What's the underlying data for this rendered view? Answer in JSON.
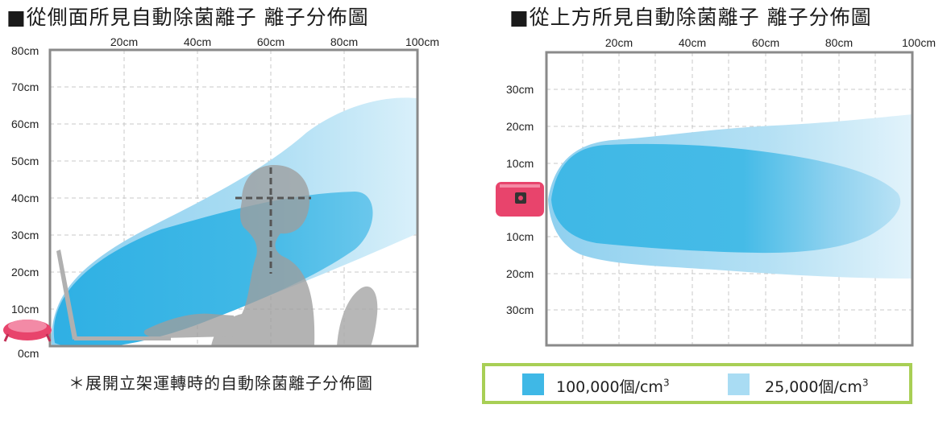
{
  "titles": {
    "side": "■從側面所見自動除菌離子 離子分佈圖",
    "top": "■從上方所見自動除菌離子 離子分佈圖"
  },
  "side_view": {
    "x_ticks": [
      "20cm",
      "40cm",
      "60cm",
      "80cm",
      "100cm"
    ],
    "y_ticks": [
      "80cm",
      "70cm",
      "60cm",
      "50cm",
      "40cm",
      "30cm",
      "20cm",
      "10cm",
      "0cm"
    ]
  },
  "top_view": {
    "x_ticks": [
      "20cm",
      "40cm",
      "60cm",
      "80cm",
      "100cm"
    ],
    "y_ticks": [
      "30cm",
      "20cm",
      "10cm",
      "10cm",
      "20cm",
      "30cm"
    ]
  },
  "caption": "＊展開立架運轉時的自動除菌離子分佈圖",
  "legend": {
    "dark_label": "100,000個/cm",
    "light_label": "25,000個/cm",
    "superscript": "3"
  },
  "colors": {
    "dark_ion": "#3fb8e6",
    "light_ion": "#a9dcf3",
    "frame": "#8a8a8a",
    "legend_border": "#a8cf55",
    "device_pink": "#e8446c"
  }
}
